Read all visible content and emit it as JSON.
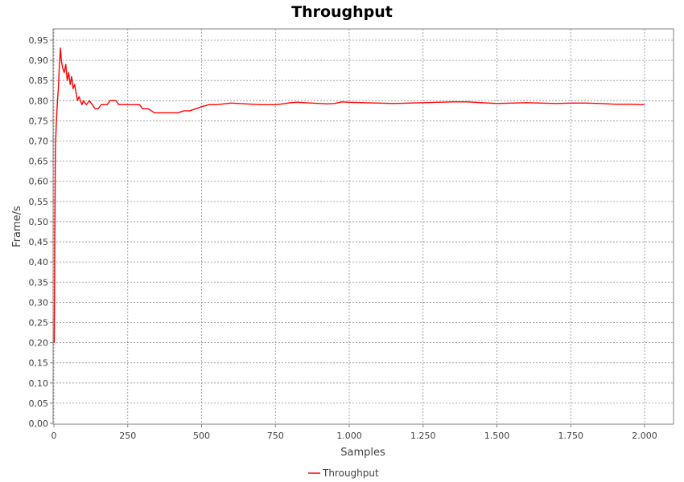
{
  "chart_data": {
    "type": "line",
    "title": "Throughput",
    "xlabel": "Samples",
    "ylabel": "Frame/s",
    "xlim": [
      0,
      2000
    ],
    "ylim": [
      0,
      0.95
    ],
    "xticks": [
      0,
      250,
      500,
      750,
      1000,
      1250,
      1500,
      1750,
      2000
    ],
    "xtick_labels": [
      "0",
      "250",
      "500",
      "750",
      "1.000",
      "1.250",
      "1.500",
      "1.750",
      "2.000"
    ],
    "yticks": [
      0,
      0.05,
      0.1,
      0.15,
      0.2,
      0.25,
      0.3,
      0.35,
      0.4,
      0.45,
      0.5,
      0.55,
      0.6,
      0.65,
      0.7,
      0.75,
      0.8,
      0.85,
      0.9,
      0.95
    ],
    "ytick_labels": [
      "0,00",
      "0,05",
      "0,10",
      "0,15",
      "0,20",
      "0,25",
      "0,30",
      "0,35",
      "0,40",
      "0,45",
      "0,50",
      "0,55",
      "0,60",
      "0,65",
      "0,70",
      "0,75",
      "0,80",
      "0,85",
      "0,90",
      "0,95"
    ],
    "grid": true,
    "legend_position": "bottom-center",
    "series": [
      {
        "name": "Throughput",
        "color": "#ff0000",
        "x": [
          1,
          3,
          5,
          8,
          12,
          15,
          18,
          22,
          25,
          30,
          35,
          40,
          45,
          50,
          55,
          60,
          65,
          70,
          75,
          80,
          85,
          90,
          95,
          100,
          110,
          120,
          130,
          140,
          150,
          160,
          170,
          180,
          190,
          200,
          210,
          220,
          230,
          240,
          250,
          260,
          270,
          280,
          290,
          300,
          320,
          340,
          360,
          380,
          400,
          420,
          440,
          460,
          480,
          500,
          525,
          550,
          575,
          600,
          625,
          650,
          675,
          700,
          725,
          750,
          775,
          800,
          825,
          850,
          875,
          900,
          925,
          950,
          975,
          1000,
          1050,
          1100,
          1150,
          1200,
          1250,
          1300,
          1350,
          1400,
          1450,
          1500,
          1550,
          1600,
          1650,
          1700,
          1750,
          1800,
          1850,
          1900,
          1950,
          2000
        ],
        "y": [
          0.2,
          0.45,
          0.68,
          0.74,
          0.8,
          0.83,
          0.88,
          0.93,
          0.9,
          0.88,
          0.87,
          0.89,
          0.85,
          0.87,
          0.84,
          0.86,
          0.83,
          0.84,
          0.82,
          0.8,
          0.81,
          0.8,
          0.79,
          0.8,
          0.79,
          0.8,
          0.79,
          0.78,
          0.78,
          0.79,
          0.79,
          0.79,
          0.8,
          0.8,
          0.8,
          0.79,
          0.79,
          0.79,
          0.79,
          0.79,
          0.79,
          0.79,
          0.79,
          0.78,
          0.78,
          0.77,
          0.77,
          0.77,
          0.77,
          0.77,
          0.775,
          0.775,
          0.78,
          0.785,
          0.79,
          0.79,
          0.792,
          0.794,
          0.793,
          0.792,
          0.791,
          0.79,
          0.79,
          0.79,
          0.792,
          0.795,
          0.796,
          0.795,
          0.794,
          0.793,
          0.792,
          0.793,
          0.797,
          0.796,
          0.795,
          0.794,
          0.793,
          0.794,
          0.795,
          0.796,
          0.797,
          0.797,
          0.795,
          0.793,
          0.794,
          0.795,
          0.794,
          0.793,
          0.794,
          0.794,
          0.793,
          0.791,
          0.791,
          0.79
        ]
      }
    ]
  }
}
